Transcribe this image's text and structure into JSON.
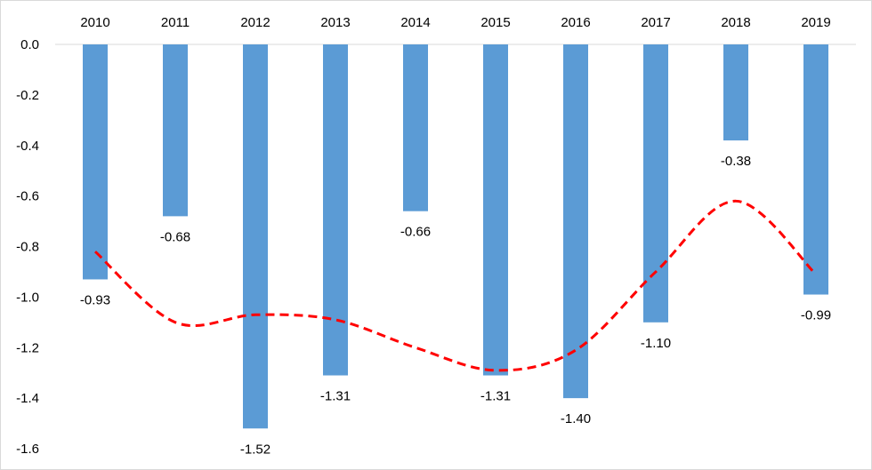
{
  "chart_data": {
    "type": "bar",
    "categories": [
      "2010",
      "2011",
      "2012",
      "2013",
      "2014",
      "2015",
      "2016",
      "2017",
      "2018",
      "2019"
    ],
    "values": [
      -0.93,
      -0.68,
      -1.52,
      -1.31,
      -0.66,
      -1.31,
      -1.4,
      -1.1,
      -0.38,
      -0.99
    ],
    "data_labels": [
      "-0.93",
      "-0.68",
      "-1.52",
      "-1.31",
      "-0.66",
      "-1.31",
      "-1.40",
      "-1.10",
      "-0.38",
      "-0.99"
    ],
    "ylim": [
      -1.6,
      0.0
    ],
    "yticks": [
      "0.0",
      "-0.2",
      "-0.4",
      "-0.6",
      "-0.8",
      "-1.0",
      "-1.2",
      "-1.4",
      "-1.6"
    ],
    "ytick_values": [
      0.0,
      -0.2,
      -0.4,
      -0.6,
      -0.8,
      -1.0,
      -1.2,
      -1.4,
      -1.6
    ],
    "x_axis_position": "top",
    "grid": false,
    "bar_color": "#5b9bd5",
    "trendline": {
      "style": "dashed",
      "color": "#ff0000",
      "x": [
        "2010",
        "2011",
        "2012",
        "2013",
        "2014",
        "2015",
        "2016",
        "2017",
        "2018",
        "2019"
      ],
      "values": [
        -0.82,
        -1.1,
        -1.07,
        -1.09,
        -1.2,
        -1.29,
        -1.21,
        -0.9,
        -0.62,
        -0.91
      ]
    }
  }
}
